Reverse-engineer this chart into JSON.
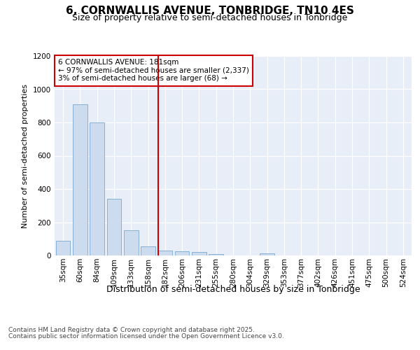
{
  "title": "6, CORNWALLIS AVENUE, TONBRIDGE, TN10 4ES",
  "subtitle": "Size of property relative to semi-detached houses in Tonbridge",
  "xlabel": "Distribution of semi-detached houses by size in Tonbridge",
  "ylabel": "Number of semi-detached properties",
  "categories": [
    "35sqm",
    "60sqm",
    "84sqm",
    "109sqm",
    "133sqm",
    "158sqm",
    "182sqm",
    "206sqm",
    "231sqm",
    "255sqm",
    "280sqm",
    "304sqm",
    "329sqm",
    "353sqm",
    "377sqm",
    "402sqm",
    "426sqm",
    "451sqm",
    "475sqm",
    "500sqm",
    "524sqm"
  ],
  "values": [
    90,
    910,
    800,
    340,
    150,
    55,
    28,
    24,
    20,
    10,
    0,
    0,
    13,
    0,
    0,
    0,
    0,
    0,
    0,
    0,
    0
  ],
  "bar_color": "#ccdcee",
  "bar_edge_color": "#7aa8d0",
  "highlight_index": 6,
  "highlight_color": "#cc0000",
  "annotation_title": "6 CORNWALLIS AVENUE: 181sqm",
  "annotation_line1": "← 97% of semi-detached houses are smaller (2,337)",
  "annotation_line2": "3% of semi-detached houses are larger (68) →",
  "ylim": [
    0,
    1200
  ],
  "yticks": [
    0,
    200,
    400,
    600,
    800,
    1000,
    1200
  ],
  "background_color": "#e8eef8",
  "grid_color": "#ffffff",
  "footer_line1": "Contains HM Land Registry data © Crown copyright and database right 2025.",
  "footer_line2": "Contains public sector information licensed under the Open Government Licence v3.0.",
  "title_fontsize": 11,
  "subtitle_fontsize": 9,
  "xlabel_fontsize": 9,
  "ylabel_fontsize": 8,
  "tick_fontsize": 7.5,
  "annotation_fontsize": 7.5,
  "footer_fontsize": 6.5
}
